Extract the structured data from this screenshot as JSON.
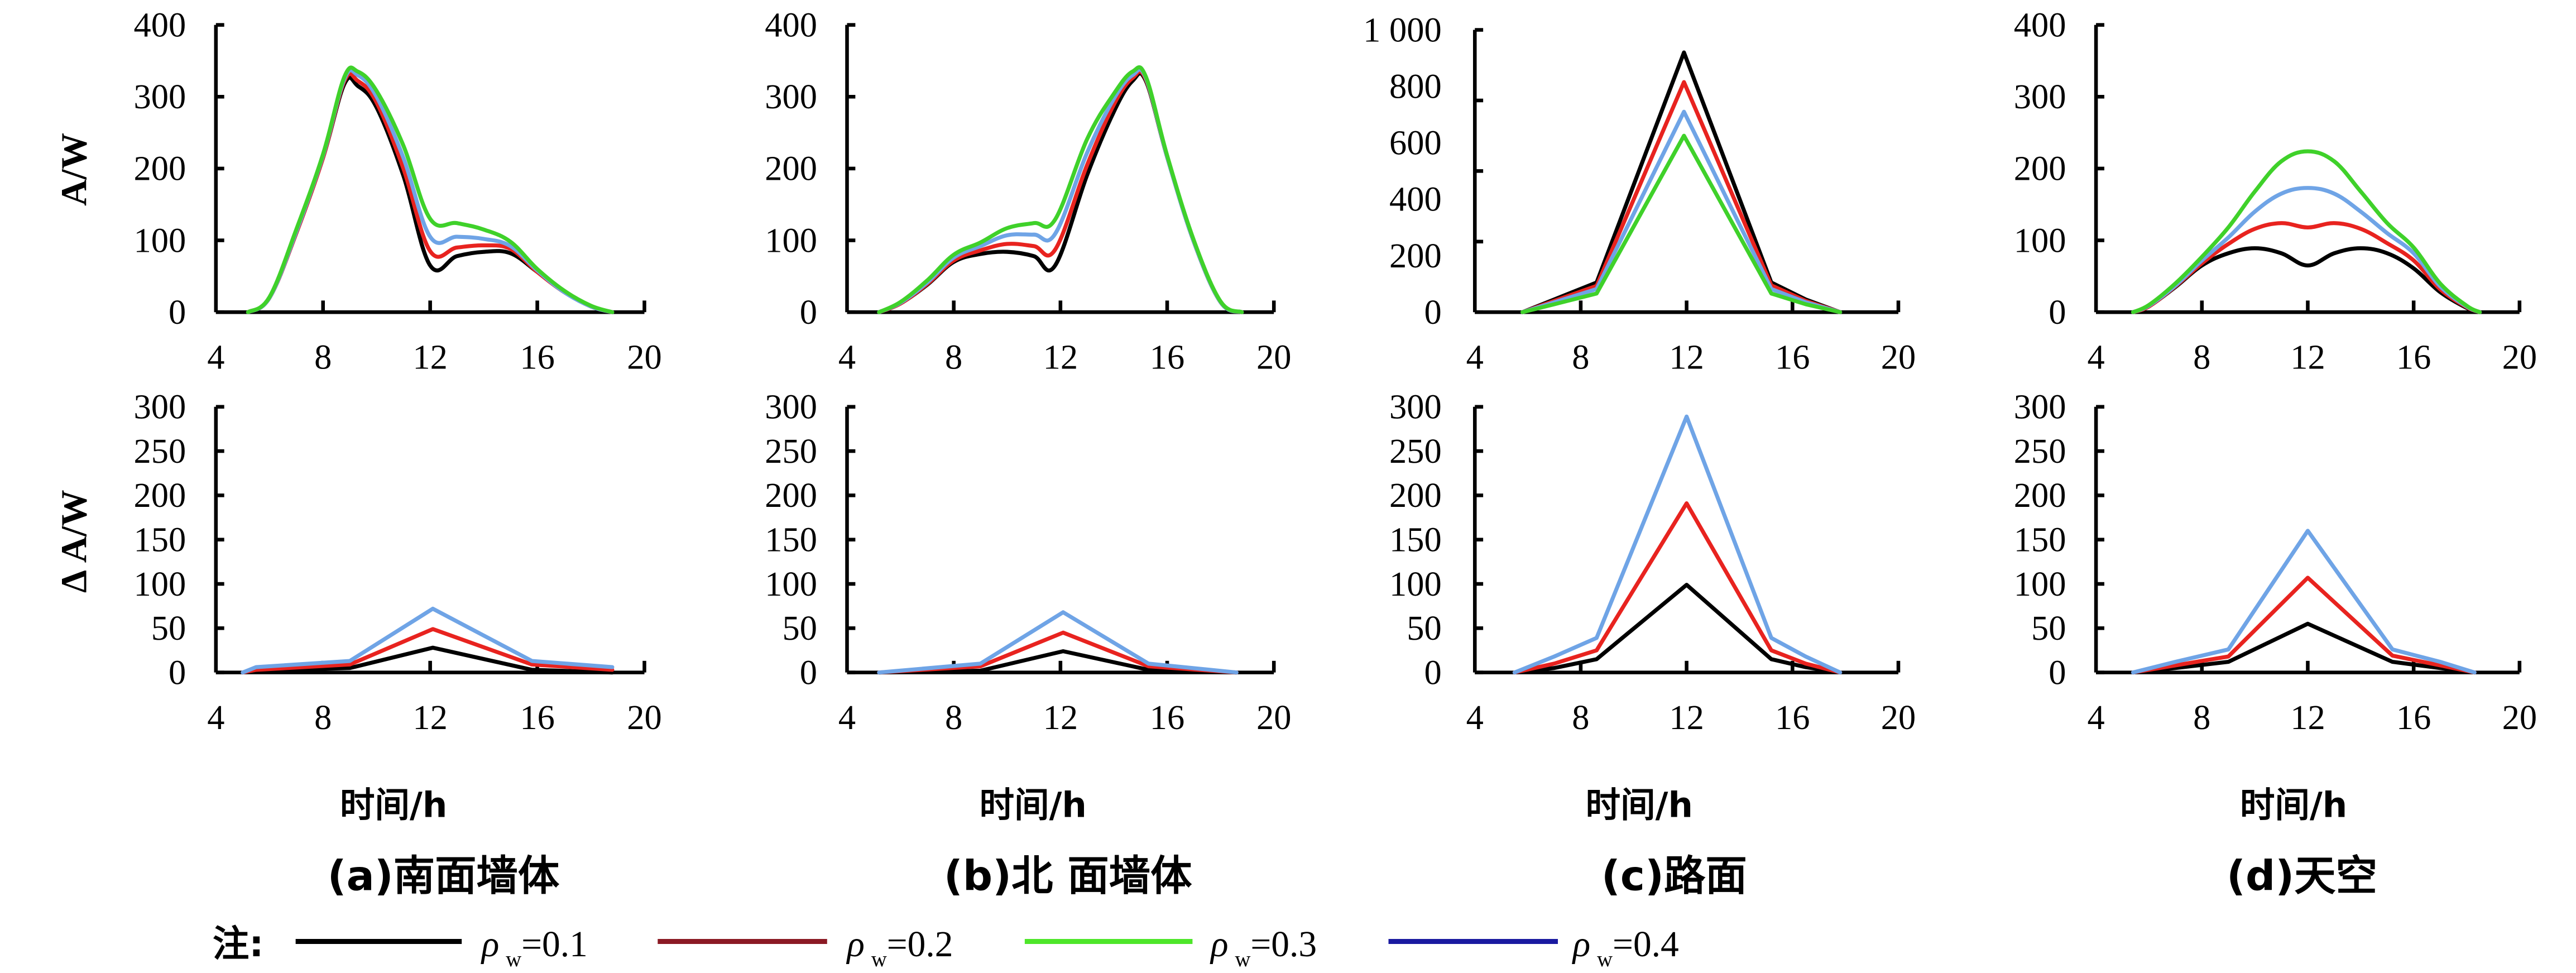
{
  "chart_data": [
    {
      "id": "a-top",
      "type": "line",
      "panel": "a",
      "row": "top",
      "ylabel": "A/W",
      "xlabel": "",
      "xlim": [
        4,
        20
      ],
      "ylim": [
        0,
        400
      ],
      "xticks": [
        4,
        8,
        12,
        16,
        20
      ],
      "xtick_labels": [
        "4",
        "8",
        "12",
        "16",
        "20"
      ],
      "yticks": [
        0,
        100,
        200,
        300,
        400
      ],
      "ytick_labels": [
        "0",
        "100",
        "200",
        "300",
        "400"
      ],
      "smooth": true,
      "x": [
        5.2,
        6,
        7,
        8,
        8.8,
        9.3,
        10,
        11,
        12,
        13,
        14,
        15,
        16,
        17,
        18,
        18.8
      ],
      "series": [
        {
          "name": "black",
          "color": "#000000",
          "values": [
            0,
            20,
            110,
            215,
            318,
            315,
            285,
            190,
            65,
            78,
            84,
            82,
            56,
            28,
            8,
            0
          ]
        },
        {
          "name": "red",
          "color": "#e8231f",
          "values": [
            0,
            20,
            110,
            215,
            322,
            322,
            292,
            200,
            85,
            90,
            93,
            88,
            56,
            28,
            8,
            0
          ]
        },
        {
          "name": "light-blue",
          "color": "#6fa4e6",
          "values": [
            0,
            20,
            112,
            218,
            325,
            330,
            300,
            215,
            105,
            105,
            102,
            92,
            58,
            28,
            8,
            0
          ]
        },
        {
          "name": "green",
          "color": "#3fd12a",
          "values": [
            0,
            21,
            115,
            220,
            328,
            335,
            308,
            232,
            130,
            124,
            115,
            98,
            60,
            30,
            9,
            0
          ]
        }
      ]
    },
    {
      "id": "b-top",
      "type": "line",
      "panel": "b",
      "row": "top",
      "ylabel": "",
      "xlabel": "",
      "xlim": [
        4,
        20
      ],
      "ylim": [
        0,
        400
      ],
      "xticks": [
        4,
        8,
        12,
        16,
        20
      ],
      "xtick_labels": [
        "4",
        "8",
        "12",
        "16",
        "20"
      ],
      "yticks": [
        0,
        100,
        200,
        300,
        400
      ],
      "ytick_labels": [
        "0",
        "100",
        "200",
        "300",
        "400"
      ],
      "smooth": true,
      "x": [
        5.2,
        6,
        7,
        8,
        9,
        10,
        11,
        11.8,
        13,
        14,
        14.7,
        15.2,
        16,
        17,
        18,
        18.8
      ],
      "series": [
        {
          "name": "black",
          "color": "#000000",
          "values": [
            0,
            12,
            38,
            70,
            81,
            84,
            78,
            65,
            191,
            279,
            322,
            322,
            216,
            98,
            14,
            0
          ]
        },
        {
          "name": "red",
          "color": "#e8231f",
          "values": [
            0,
            12,
            39,
            72,
            86,
            95,
            92,
            87,
            205,
            289,
            326,
            324,
            216,
            98,
            14,
            0
          ]
        },
        {
          "name": "light-blue",
          "color": "#6fa4e6",
          "values": [
            0,
            13,
            41,
            76,
            92,
            107,
            108,
            109,
            222,
            297,
            330,
            326,
            216,
            98,
            14,
            0
          ]
        },
        {
          "name": "green",
          "color": "#3fd12a",
          "values": [
            0,
            14,
            44,
            80,
            97,
            117,
            124,
            129,
            241,
            304,
            335,
            328,
            218,
            100,
            15,
            0
          ]
        }
      ]
    },
    {
      "id": "c-top",
      "type": "line",
      "panel": "c",
      "row": "top",
      "ylabel": "",
      "xlabel": "",
      "xlim": [
        4,
        20
      ],
      "ylim": [
        0,
        1000
      ],
      "xticks": [
        4,
        8,
        12,
        16,
        20
      ],
      "xtick_labels": [
        "4",
        "8",
        "12",
        "16",
        "20"
      ],
      "yticks": [
        0,
        200,
        400,
        600,
        800,
        1000
      ],
      "ytick_labels": [
        "0",
        "200",
        "400",
        "600",
        "800",
        "1 000"
      ],
      "smooth": false,
      "x": [
        5.8,
        7,
        8.6,
        11.9,
        15.2,
        16.5,
        17.8
      ],
      "series": [
        {
          "name": "black",
          "color": "#000000",
          "values": [
            0,
            45,
            105,
            920,
            105,
            45,
            0
          ]
        },
        {
          "name": "red",
          "color": "#e8231f",
          "values": [
            0,
            40,
            93,
            815,
            95,
            40,
            0
          ]
        },
        {
          "name": "light-blue",
          "color": "#6fa4e6",
          "values": [
            0,
            35,
            82,
            710,
            82,
            35,
            0
          ]
        },
        {
          "name": "green",
          "color": "#3fd12a",
          "values": [
            0,
            28,
            66,
            625,
            66,
            28,
            0
          ]
        }
      ]
    },
    {
      "id": "d-top",
      "type": "line",
      "panel": "d",
      "row": "top",
      "ylabel": "",
      "xlabel": "",
      "xlim": [
        4,
        20
      ],
      "ylim": [
        0,
        400
      ],
      "xticks": [
        4,
        8,
        12,
        16,
        20
      ],
      "xtick_labels": [
        "4",
        "8",
        "12",
        "16",
        "20"
      ],
      "yticks": [
        0,
        100,
        200,
        300,
        400
      ],
      "ytick_labels": [
        "0",
        "100",
        "200",
        "300",
        "400"
      ],
      "smooth": true,
      "x": [
        5.4,
        6,
        7,
        8,
        9,
        10,
        11,
        12,
        13,
        14,
        15,
        16,
        17,
        18,
        18.5
      ],
      "series": [
        {
          "name": "black",
          "color": "#000000",
          "values": [
            0,
            8,
            35,
            65,
            82,
            89,
            82,
            65,
            82,
            89,
            82,
            61,
            28,
            6,
            0
          ]
        },
        {
          "name": "red",
          "color": "#e8231f",
          "values": [
            0,
            8,
            36,
            68,
            95,
            116,
            124,
            118,
            124,
            116,
            96,
            72,
            32,
            7,
            0
          ]
        },
        {
          "name": "light-blue",
          "color": "#6fa4e6",
          "values": [
            0,
            9,
            37,
            72,
            104,
            140,
            165,
            173,
            165,
            140,
            110,
            82,
            36,
            8,
            0
          ]
        },
        {
          "name": "green",
          "color": "#3fd12a",
          "values": [
            0,
            10,
            40,
            77,
            118,
            168,
            210,
            224,
            210,
            168,
            124,
            90,
            40,
            9,
            0
          ]
        }
      ]
    },
    {
      "id": "a-bottom",
      "type": "line",
      "panel": "a",
      "row": "bottom",
      "ylabel": "Δ A/W",
      "xlabel": "时间/h",
      "xlim": [
        4,
        20
      ],
      "ylim": [
        0,
        300
      ],
      "xticks": [
        4,
        8,
        12,
        16,
        20
      ],
      "xtick_labels": [
        "4",
        "8",
        "12",
        "16",
        "20"
      ],
      "yticks": [
        0,
        50,
        100,
        150,
        200,
        250,
        300
      ],
      "ytick_labels": [
        "0",
        "50",
        "100",
        "150",
        "200",
        "250",
        "300"
      ],
      "smooth": false,
      "x": [
        5,
        5.5,
        9,
        12.1,
        15.8,
        18.8
      ],
      "series": [
        {
          "name": "black",
          "color": "#000000",
          "values": [
            0,
            2,
            5,
            28,
            3,
            0
          ]
        },
        {
          "name": "red",
          "color": "#e8231f",
          "values": [
            0,
            3,
            9,
            49,
            9,
            3
          ]
        },
        {
          "name": "light-blue",
          "color": "#6fa4e6",
          "values": [
            0,
            6,
            13,
            72,
            13,
            6
          ]
        }
      ]
    },
    {
      "id": "b-bottom",
      "type": "line",
      "panel": "b",
      "row": "bottom",
      "ylabel": "",
      "xlabel": "时间/h",
      "xlim": [
        4,
        20
      ],
      "ylim": [
        0,
        300
      ],
      "xticks": [
        4,
        8,
        12,
        16,
        20
      ],
      "xtick_labels": [
        "4",
        "8",
        "12",
        "16",
        "20"
      ],
      "yticks": [
        0,
        50,
        100,
        150,
        200,
        250,
        300
      ],
      "ytick_labels": [
        "0",
        "50",
        "100",
        "150",
        "200",
        "250",
        "300"
      ],
      "smooth": false,
      "x": [
        5.2,
        9,
        12.1,
        15.3,
        18.6
      ],
      "series": [
        {
          "name": "black",
          "color": "#000000",
          "values": [
            0,
            2,
            24,
            3,
            0
          ]
        },
        {
          "name": "red",
          "color": "#e8231f",
          "values": [
            0,
            7,
            45,
            7,
            0
          ]
        },
        {
          "name": "light-blue",
          "color": "#6fa4e6",
          "values": [
            0,
            10,
            68,
            10,
            0
          ]
        }
      ]
    },
    {
      "id": "c-bottom",
      "type": "line",
      "panel": "c",
      "row": "bottom",
      "ylabel": "",
      "xlabel": "时间/h",
      "xlim": [
        4,
        20
      ],
      "ylim": [
        0,
        300
      ],
      "xticks": [
        4,
        8,
        12,
        16,
        20
      ],
      "xtick_labels": [
        "4",
        "8",
        "12",
        "16",
        "20"
      ],
      "yticks": [
        0,
        50,
        100,
        150,
        200,
        250,
        300
      ],
      "ytick_labels": [
        "0",
        "50",
        "100",
        "150",
        "200",
        "250",
        "300"
      ],
      "smooth": false,
      "x": [
        5.5,
        7,
        8.6,
        12,
        15.2,
        16.5,
        17.8
      ],
      "series": [
        {
          "name": "black",
          "color": "#000000",
          "values": [
            0,
            5,
            15,
            99,
            15,
            6,
            0
          ]
        },
        {
          "name": "red",
          "color": "#e8231f",
          "values": [
            0,
            10,
            25,
            191,
            25,
            10,
            0
          ]
        },
        {
          "name": "light-blue",
          "color": "#6fa4e6",
          "values": [
            0,
            18,
            39,
            289,
            39,
            18,
            0
          ]
        }
      ]
    },
    {
      "id": "d-bottom",
      "type": "line",
      "panel": "d",
      "row": "bottom",
      "ylabel": "",
      "xlabel": "时间/h",
      "xlim": [
        4,
        20
      ],
      "ylim": [
        0,
        300
      ],
      "xticks": [
        4,
        8,
        12,
        16,
        20
      ],
      "xtick_labels": [
        "4",
        "8",
        "12",
        "16",
        "20"
      ],
      "yticks": [
        0,
        50,
        100,
        150,
        200,
        250,
        300
      ],
      "ytick_labels": [
        "0",
        "50",
        "100",
        "150",
        "200",
        "250",
        "300"
      ],
      "smooth": false,
      "x": [
        5.4,
        7,
        9,
        12,
        15.2,
        17,
        18.3
      ],
      "series": [
        {
          "name": "black",
          "color": "#000000",
          "values": [
            0,
            5,
            12,
            55,
            12,
            5,
            0
          ]
        },
        {
          "name": "red",
          "color": "#e8231f",
          "values": [
            0,
            8,
            18,
            107,
            19,
            8,
            0
          ]
        },
        {
          "name": "light-blue",
          "color": "#6fa4e6",
          "values": [
            0,
            12,
            26,
            160,
            26,
            12,
            0
          ]
        }
      ]
    }
  ],
  "figure": {
    "top_row_ylabel": "A/W",
    "bottom_row_ylabel": "Δ A/W",
    "xlabel": "时间/h",
    "captions": {
      "a": "(a)南面墙体",
      "b": "(b)北 面墙体",
      "c": "(c)路面",
      "d": "(d)天空"
    },
    "legend": {
      "note": "注:",
      "placement": "bottom",
      "entries": [
        {
          "symbol": "ρ",
          "subscript": "w",
          "value": "=0.1",
          "color": "#000000"
        },
        {
          "symbol": "ρ",
          "subscript": "w",
          "value": "=0.2",
          "color": "#8b1a24"
        },
        {
          "symbol": "ρ",
          "subscript": "w",
          "value": "=0.3",
          "color": "#4ee62a"
        },
        {
          "symbol": "ρ",
          "subscript": "w",
          "value": "=0.4",
          "color": "#1a1aa0"
        }
      ]
    }
  }
}
